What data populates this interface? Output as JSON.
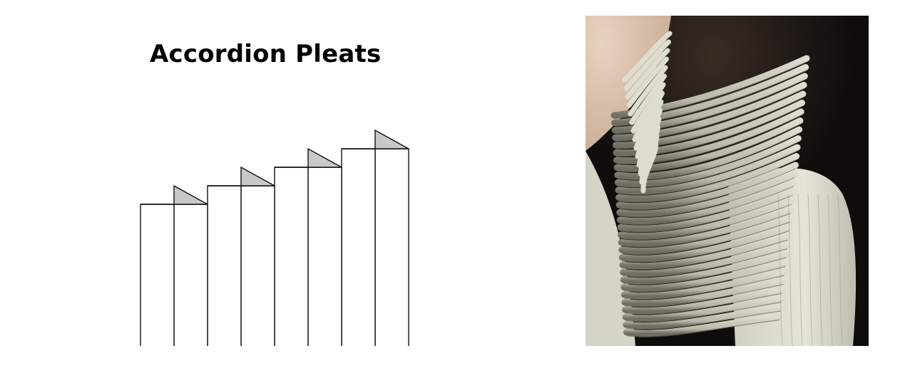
{
  "figure": {
    "title": "Accordion Pleats",
    "pleat_count": 8
  },
  "diagram": {
    "stroke_color": "#111111",
    "panel_fill": "#ffffff",
    "fold_fill": "#c8c8c8"
  },
  "photo": {
    "background": "#0e0d0c",
    "fabric_light": "#ddddd0",
    "fabric_mid": "#b8b8a8",
    "fabric_shadow": "#6e6e62",
    "skin": "#d9c0a9"
  }
}
